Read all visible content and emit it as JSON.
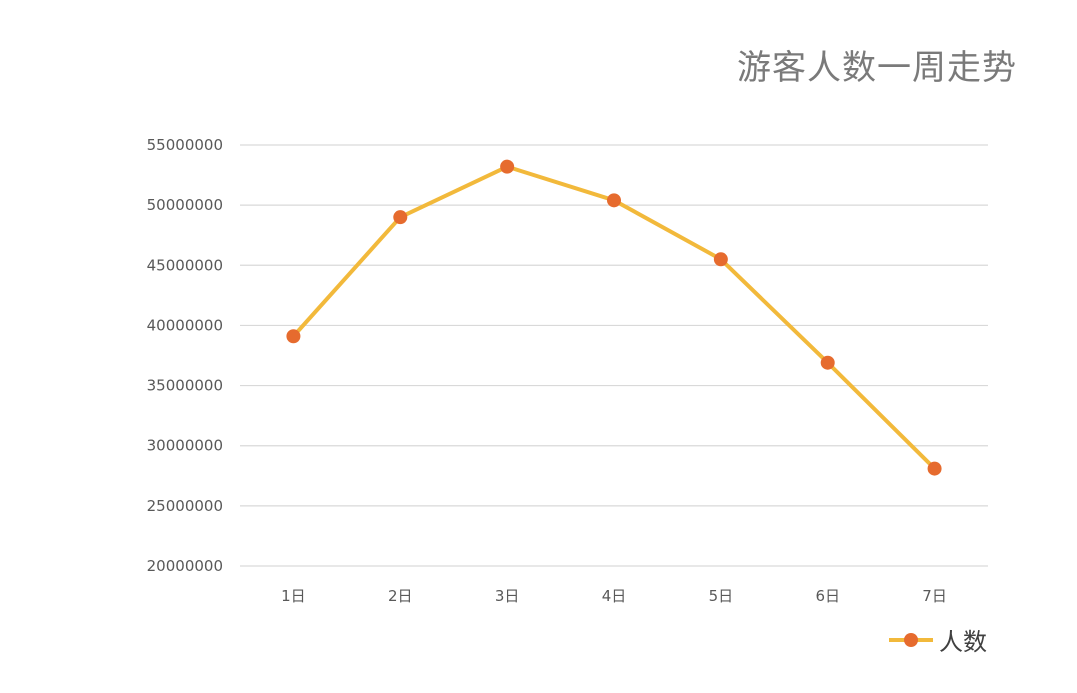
{
  "chart_data": {
    "type": "line",
    "title": "游客人数一周走势",
    "xlabel": "",
    "ylabel": "",
    "categories": [
      "1日",
      "2日",
      "3日",
      "4日",
      "5日",
      "6日",
      "7日"
    ],
    "series": [
      {
        "name": "人数",
        "values": [
          39100000,
          49000000,
          53200000,
          50400000,
          45500000,
          36900000,
          28100000
        ]
      }
    ],
    "ylim": [
      20000000,
      55000000
    ],
    "yticks": [
      "20000000",
      "25000000",
      "30000000",
      "35000000",
      "40000000",
      "45000000",
      "50000000",
      "55000000"
    ],
    "grid": true,
    "legend_position": "bottom-right",
    "colors": {
      "line": "#f2b93b",
      "marker": "#e66b2e",
      "grid": "#d9d9d9",
      "title": "#7a7a7a",
      "tick_text": "#595959"
    }
  }
}
